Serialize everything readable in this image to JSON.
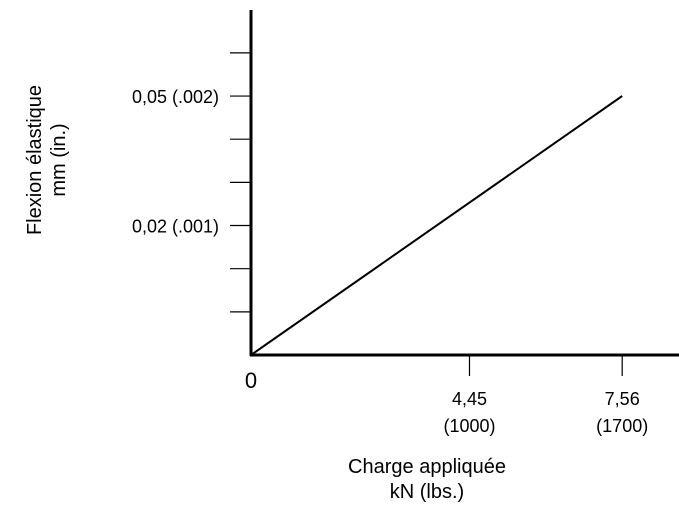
{
  "chart_data": {
    "type": "line",
    "title": "",
    "xlabel": "Charge appliquée",
    "xlabel_units": "kN (lbs.)",
    "ylabel": "Flexion élastique",
    "ylabel_units": "mm (in.)",
    "origin_label": "0",
    "xlim": [
      0,
      10
    ],
    "ylim": [
      0,
      0.066
    ],
    "x_ticks": [
      {
        "value": 4.45,
        "label": "4,45",
        "sublabel": "(1000)"
      },
      {
        "value": 7.56,
        "label": "7,56",
        "sublabel": "(1700)"
      }
    ],
    "y_ticks": [
      {
        "value": 0.01,
        "label": ""
      },
      {
        "value": 0.02,
        "label": ""
      },
      {
        "value": 0.03,
        "label": "0,02 (.001)"
      },
      {
        "value": 0.04,
        "label": ""
      },
      {
        "value": 0.05,
        "label": ""
      },
      {
        "value": 0.06,
        "label": "0,05 (.002)"
      },
      {
        "value": 0.07,
        "label": ""
      }
    ],
    "series": [
      {
        "x": [
          0,
          7.56
        ],
        "y": [
          0,
          0.06
        ]
      }
    ],
    "grid": false,
    "legend": false,
    "line_color": "#000000"
  }
}
